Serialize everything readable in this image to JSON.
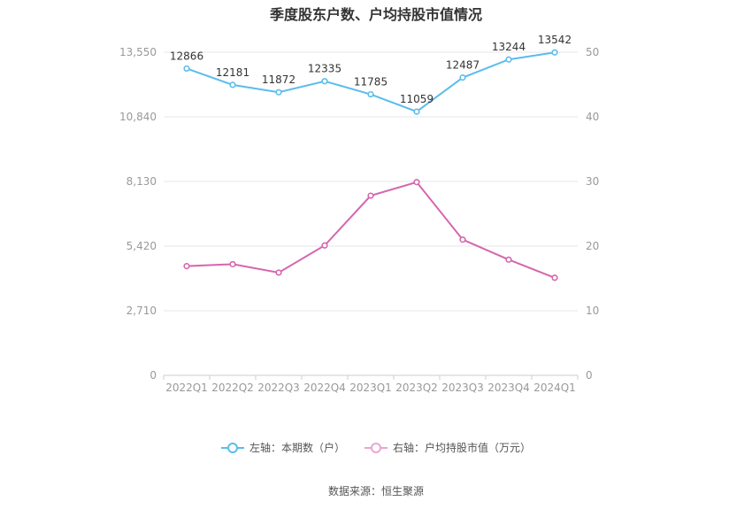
{
  "colors": {
    "left_series": "#5bbcec",
    "right_series": "#d566ad",
    "grid": "#e6e6ef",
    "axis_text": "#999999",
    "data_label": "#333333"
  },
  "chart_data": {
    "type": "line",
    "title": "季度股东户数、户均持股市值情况",
    "categories": [
      "2022Q1",
      "2022Q2",
      "2022Q3",
      "2022Q4",
      "2023Q1",
      "2023Q2",
      "2023Q3",
      "2023Q4",
      "2024Q1"
    ],
    "left_axis": {
      "ylim": [
        0,
        13550
      ],
      "ticks": [
        0,
        2710,
        5420,
        8130,
        10840,
        13550
      ],
      "tick_labels": [
        "0",
        "2,710",
        "5,420",
        "8,130",
        "10,840",
        "13,550"
      ]
    },
    "right_axis": {
      "ylim": [
        0,
        50
      ],
      "ticks": [
        0,
        10,
        20,
        30,
        40,
        50
      ],
      "tick_labels": [
        "0",
        "10",
        "20",
        "30",
        "40",
        "50"
      ]
    },
    "series": [
      {
        "name": "左轴：本期数（户）",
        "axis": "left",
        "values": [
          12866,
          12181,
          11872,
          12335,
          11785,
          11059,
          12487,
          13244,
          13542
        ],
        "labels": [
          "12866",
          "12181",
          "11872",
          "12335",
          "11785",
          "11059",
          "12487",
          "13244",
          "13542"
        ]
      },
      {
        "name": "右轴：户均持股市值（万元）",
        "axis": "right",
        "values": [
          16.9,
          17.2,
          15.9,
          20.1,
          27.8,
          29.9,
          21.0,
          17.9,
          15.1
        ]
      }
    ],
    "grid": true,
    "legend_position": "bottom"
  },
  "source": "数据来源：恒生聚源"
}
